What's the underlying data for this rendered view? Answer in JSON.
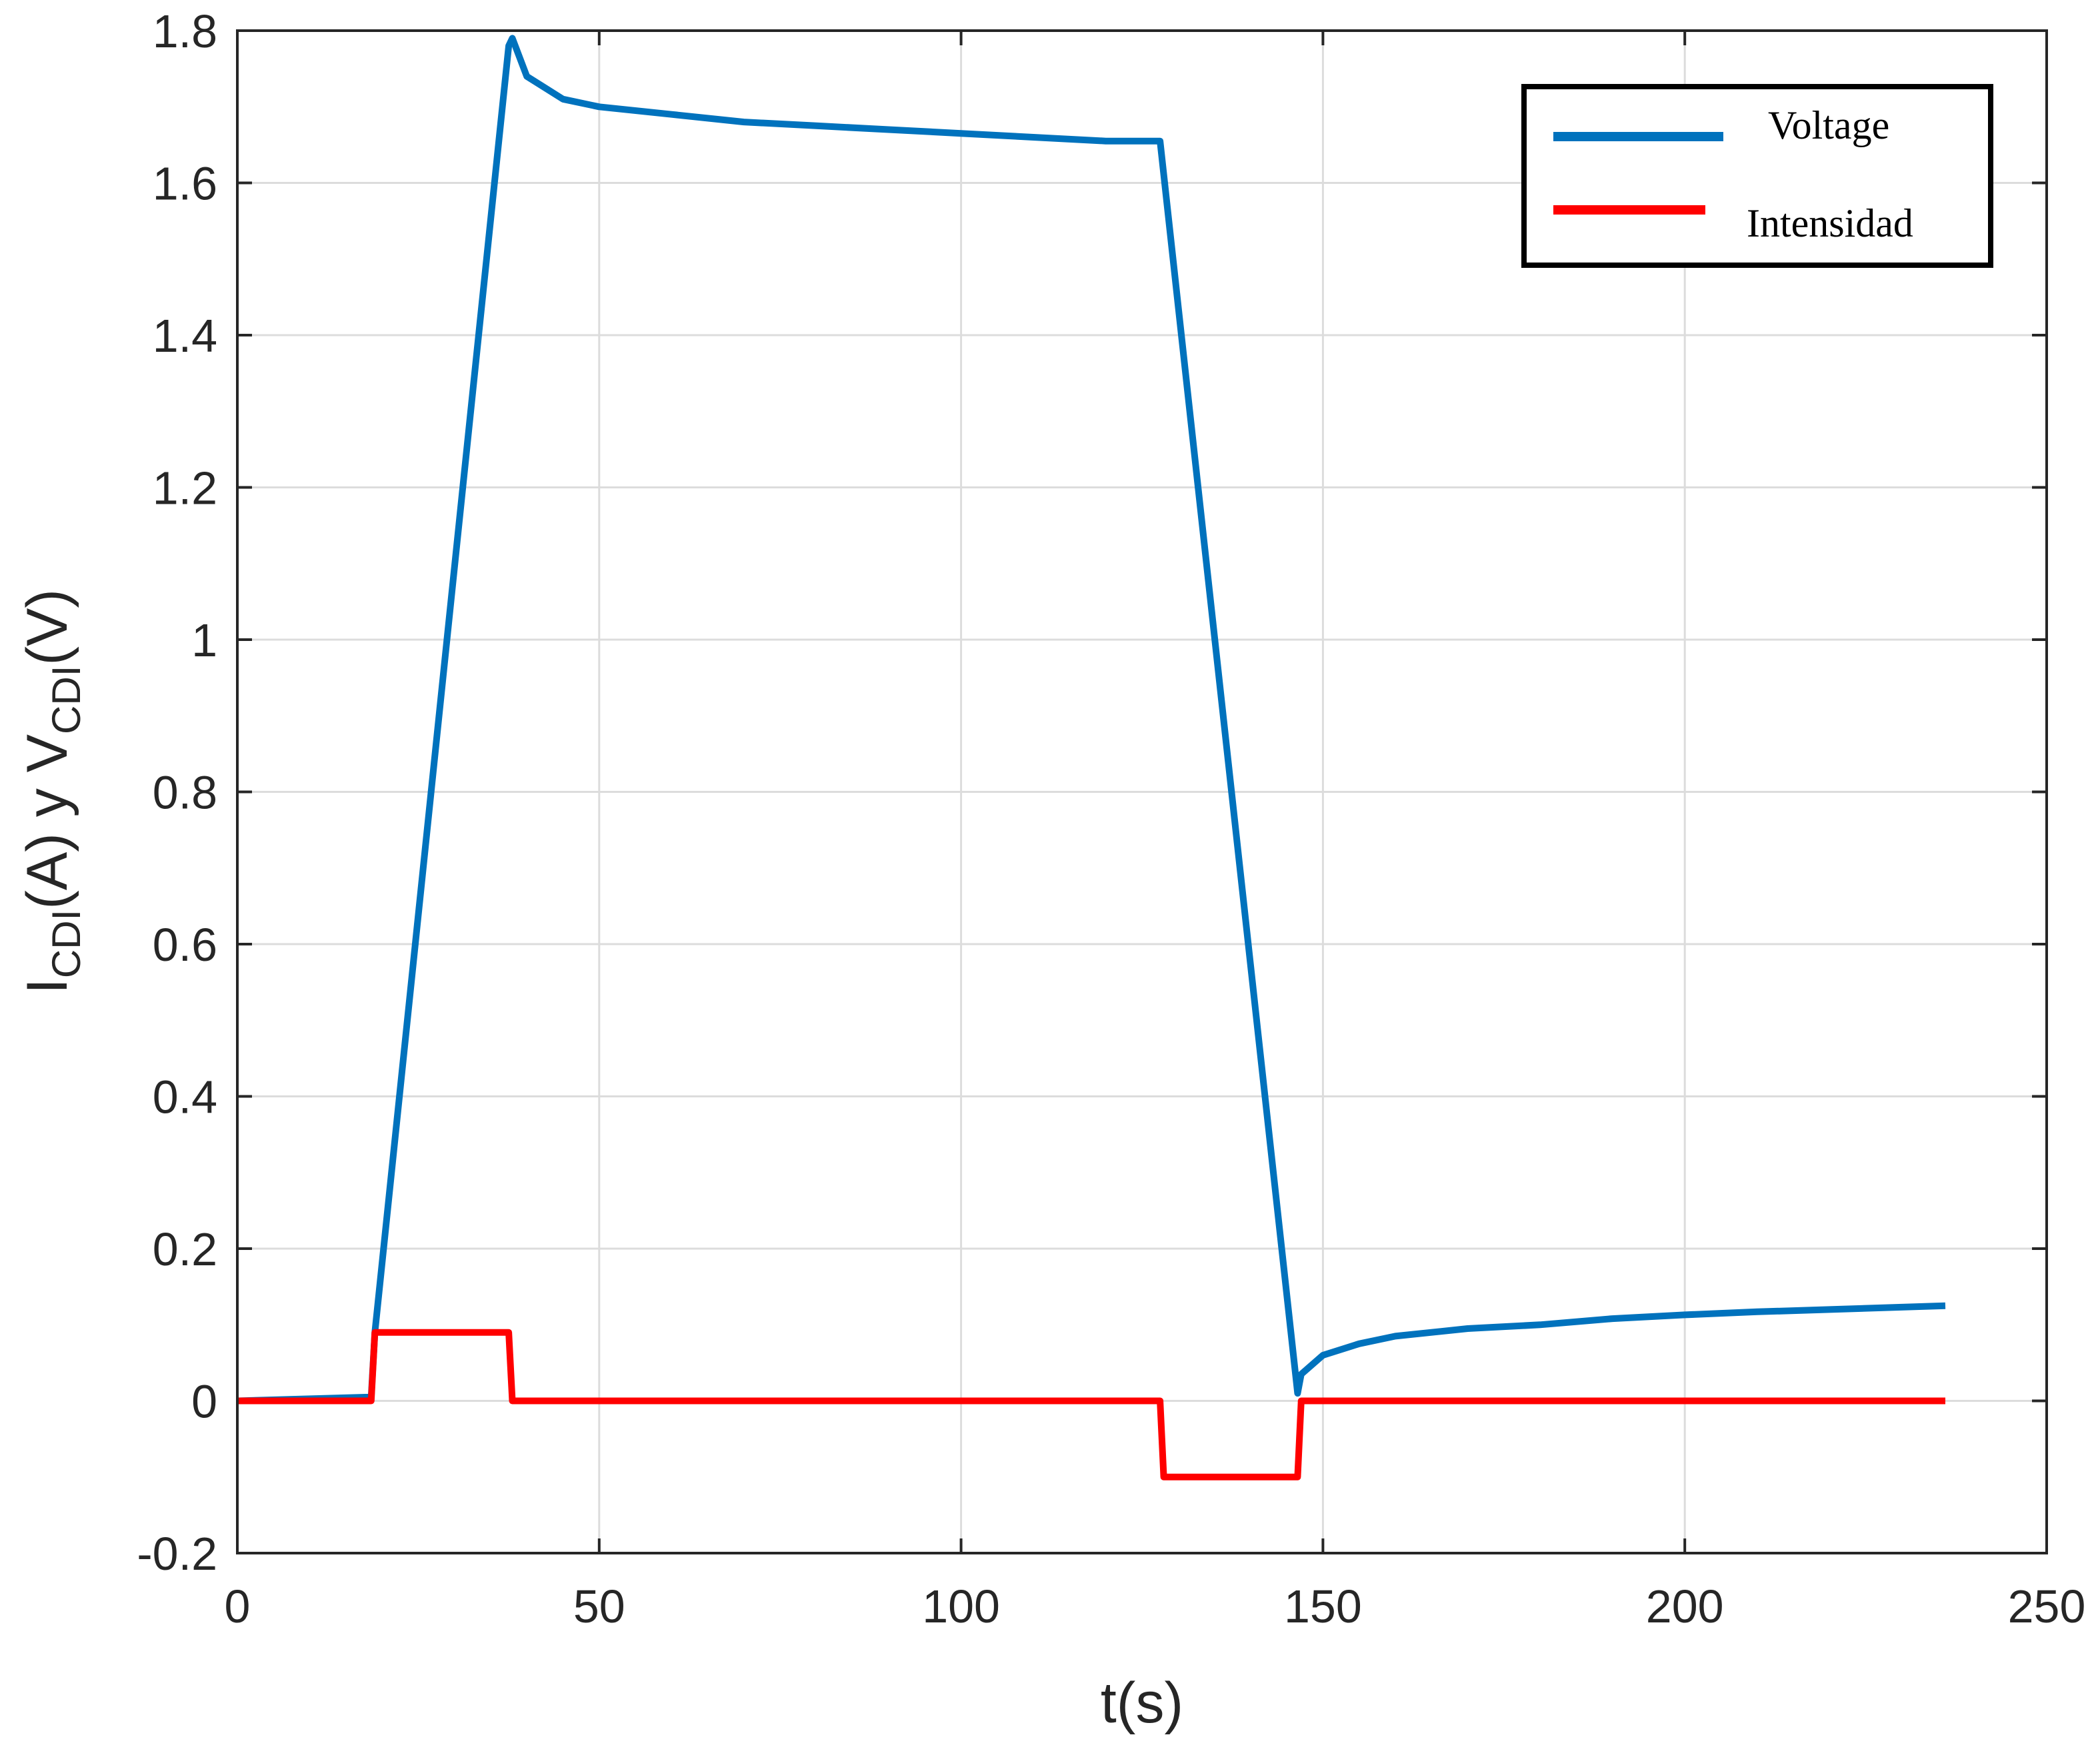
{
  "chart_data": {
    "type": "line",
    "xlabel": "t(s)",
    "ylabel": {
      "prefix": "I",
      "sub1": "CDI",
      "middle": "(A)  y  V",
      "sub2": "CDI",
      "suffix": "(V)"
    },
    "xlim": [
      0,
      250
    ],
    "ylim": [
      -0.2,
      1.8
    ],
    "xticks": [
      0,
      50,
      100,
      150,
      200,
      250
    ],
    "xtick_labels": [
      "0",
      "50",
      "100",
      "150",
      "200",
      "250"
    ],
    "yticks": [
      -0.2,
      0,
      0.2,
      0.4,
      0.6,
      0.8,
      1,
      1.2,
      1.4,
      1.6,
      1.8
    ],
    "ytick_labels": [
      "-0.2",
      "0",
      "0.2",
      "0.4",
      "0.6",
      "0.8",
      "1",
      "1.2",
      "1.4",
      "1.6",
      "1.8"
    ],
    "grid": true,
    "legend_position": "top-right",
    "series": [
      {
        "name": "Voltage",
        "color": "#0072bd",
        "x": [
          0,
          18.5,
          19,
          37.5,
          38,
          40,
          45,
          50,
          60,
          70,
          80,
          90,
          100,
          110,
          120,
          127.5,
          146.5,
          147,
          150,
          155,
          160,
          170,
          180,
          190,
          200,
          210,
          220,
          236
        ],
        "y": [
          0,
          0.005,
          0.09,
          1.78,
          1.79,
          1.74,
          1.71,
          1.7,
          1.69,
          1.68,
          1.675,
          1.67,
          1.665,
          1.66,
          1.655,
          1.655,
          0.01,
          0.035,
          0.06,
          0.075,
          0.085,
          0.095,
          0.1,
          0.108,
          0.113,
          0.117,
          0.12,
          0.125
        ]
      },
      {
        "name": "Intensidad",
        "color": "#ff0000",
        "x": [
          0,
          18.5,
          19,
          37.5,
          38,
          127.5,
          128,
          146.5,
          147,
          236
        ],
        "y": [
          0,
          0,
          0.09,
          0.09,
          0,
          0,
          -0.1,
          -0.1,
          0,
          0
        ]
      }
    ]
  }
}
